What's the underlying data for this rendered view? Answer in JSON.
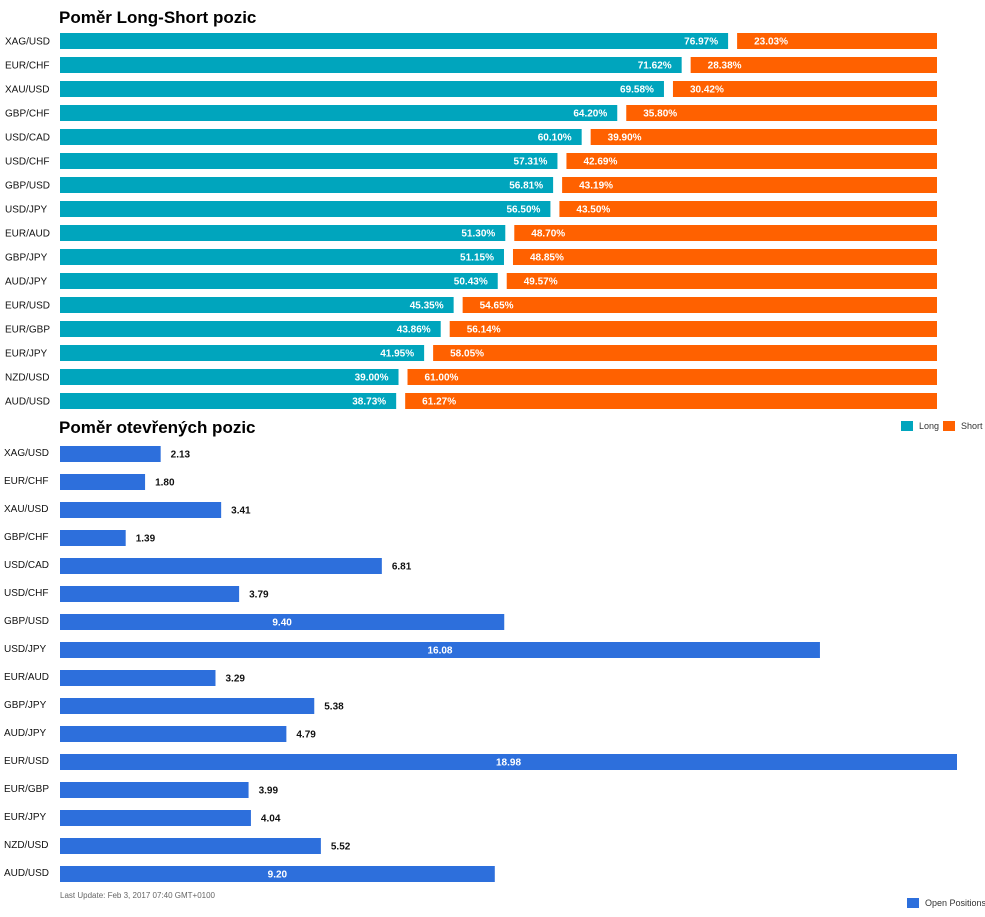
{
  "colors": {
    "long": "#00a5bd",
    "short": "#ff6100",
    "open": "#2d6fdc"
  },
  "legend": {
    "long": "Long",
    "short": "Short",
    "open": "Open Positions"
  },
  "last_update": "Last Update: Feb 3, 2017 07:40 GMT+0100",
  "chart_data": [
    {
      "type": "bar",
      "orientation": "horizontal-stacked",
      "title": "Poměr Long-Short pozic",
      "categories": [
        "XAG/USD",
        "EUR/CHF",
        "XAU/USD",
        "GBP/CHF",
        "USD/CAD",
        "USD/CHF",
        "GBP/USD",
        "USD/JPY",
        "EUR/AUD",
        "GBP/JPY",
        "AUD/JPY",
        "EUR/USD",
        "EUR/GBP",
        "EUR/JPY",
        "NZD/USD",
        "AUD/USD"
      ],
      "series": [
        {
          "name": "Long",
          "values": [
            76.97,
            71.62,
            69.58,
            64.2,
            60.1,
            57.31,
            56.81,
            56.5,
            51.3,
            51.15,
            50.43,
            45.35,
            43.86,
            41.95,
            39.0,
            38.73
          ]
        },
        {
          "name": "Short",
          "values": [
            23.03,
            28.38,
            30.42,
            35.8,
            39.9,
            42.69,
            43.19,
            43.5,
            48.7,
            48.85,
            49.57,
            54.65,
            56.14,
            58.05,
            61.0,
            61.27
          ]
        }
      ],
      "unit": "%",
      "legend_position": "bottom-right"
    },
    {
      "type": "bar",
      "orientation": "horizontal",
      "title": "Poměr otevřených pozic",
      "categories": [
        "XAG/USD",
        "EUR/CHF",
        "XAU/USD",
        "GBP/CHF",
        "USD/CAD",
        "USD/CHF",
        "GBP/USD",
        "USD/JPY",
        "EUR/AUD",
        "GBP/JPY",
        "AUD/JPY",
        "EUR/USD",
        "EUR/GBP",
        "EUR/JPY",
        "NZD/USD",
        "AUD/USD"
      ],
      "series": [
        {
          "name": "Open Positions",
          "values": [
            2.13,
            1.8,
            3.41,
            1.39,
            6.81,
            3.79,
            9.4,
            16.08,
            3.29,
            5.38,
            4.79,
            18.98,
            3.99,
            4.04,
            5.52,
            9.2
          ]
        }
      ],
      "legend_position": "bottom-right"
    }
  ]
}
